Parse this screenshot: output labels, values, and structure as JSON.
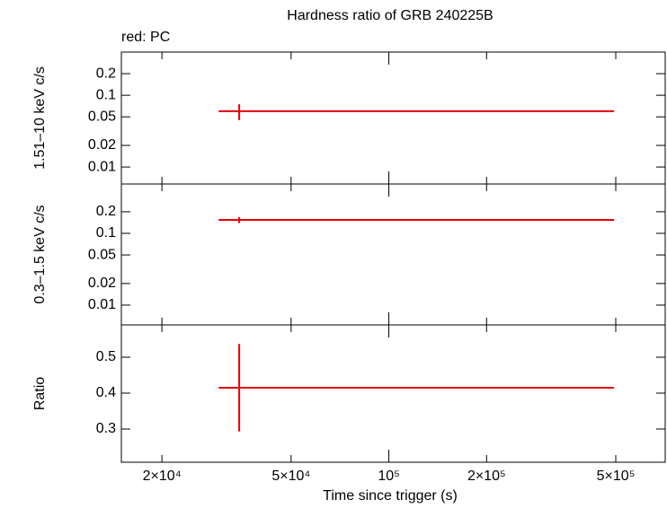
{
  "chart_data": [
    {
      "type": "errorbar",
      "title": "Hardness ratio of GRB 240225B",
      "annotation": "red: PC",
      "y_label": "1.51–10 keV c/s",
      "log_x": true,
      "log_y": true,
      "ylim": [
        0.0058,
        0.4
      ],
      "yticks": [
        0.2,
        0.1,
        0.05,
        0.02,
        0.01
      ],
      "series": [
        {
          "color": "#e8000b",
          "x": [
            34600
          ],
          "x_low": [
            29900
          ],
          "x_high": [
            494000
          ],
          "values": [
            0.06
          ],
          "err": [
            0.015
          ]
        }
      ]
    },
    {
      "type": "errorbar",
      "y_label": "0.3–1.5 keV c/s",
      "log_x": true,
      "log_y": true,
      "ylim": [
        0.0053,
        0.487
      ],
      "yticks": [
        0.2,
        0.1,
        0.05,
        0.02,
        0.01
      ],
      "series": [
        {
          "color": "#e8000b",
          "x": [
            34600
          ],
          "x_low": [
            29900
          ],
          "x_high": [
            494000
          ],
          "values": [
            0.154
          ],
          "err": [
            0.015
          ]
        }
      ]
    },
    {
      "type": "errorbar",
      "y_label": "Ratio",
      "x_label": "Time since trigger (s)",
      "log_x": true,
      "log_y": false,
      "xlim": [
        15000,
        710000
      ],
      "xticks": [
        {
          "value": 20000,
          "label": "2×10⁴"
        },
        {
          "value": 50000,
          "label": "5×10⁴"
        },
        {
          "value": 100000,
          "label": "10⁵"
        },
        {
          "value": 200000,
          "label": "2×10⁵"
        },
        {
          "value": 500000,
          "label": "5×10⁵"
        }
      ],
      "ylim": [
        0.2075,
        0.59
      ],
      "yticks": [
        0.5,
        0.4,
        0.3
      ],
      "series": [
        {
          "color": "#e8000b",
          "x": [
            34600
          ],
          "x_low": [
            29900
          ],
          "x_high": [
            494000
          ],
          "values": [
            0.415
          ],
          "err": [
            0.122
          ]
        }
      ]
    }
  ]
}
